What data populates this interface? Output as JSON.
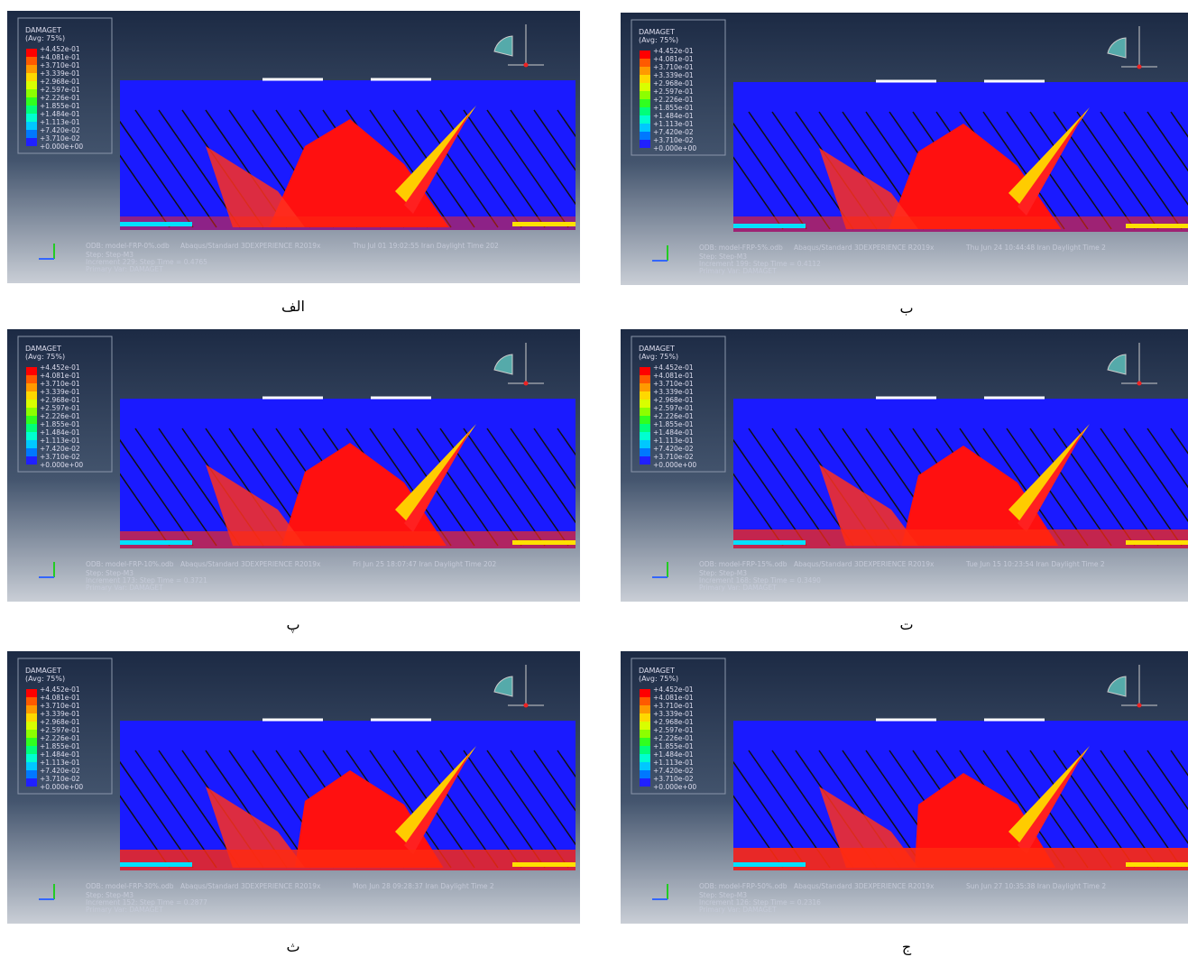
{
  "legend": {
    "title": "DAMAGET",
    "subtitle": "(Avg: 75%)",
    "values": [
      "+4.452e-01",
      "+4.081e-01",
      "+3.710e-01",
      "+3.339e-01",
      "+2.968e-01",
      "+2.597e-01",
      "+2.226e-01",
      "+1.855e-01",
      "+1.484e-01",
      "+1.113e-01",
      "+7.420e-02",
      "+3.710e-02",
      "+0.000e+00"
    ]
  },
  "software": "Abaqus/Standard 3DEXPERIENCE R2019x",
  "step": "Step: Step-M3",
  "primary_var": "Primary Var: DAMAGET",
  "panels": [
    {
      "label": "الف",
      "odb": "ODB: model-FRP-0%.odb",
      "date": "Thu Jul 01 19:02:55 Iran Daylight Time 202",
      "increment": "Increment    229: Step Time =    0.4765"
    },
    {
      "label": "ب",
      "odb": "ODB: model-FRP-5%.odb",
      "date": "Thu Jun 24 10:44:48 Iran Daylight Time 2",
      "increment": "Increment    199: Step Time =    0.4112"
    },
    {
      "label": "پ",
      "odb": "ODB: model-FRP-10%.odb",
      "date": "Fri Jun 25 18:07:47 Iran Daylight Time 202",
      "increment": "Increment    173: Step Time =    0.3721"
    },
    {
      "label": "ت",
      "odb": "ODB: model-FRP-15%.odb",
      "date": "Tue Jun 15 10:23:54 Iran Daylight Time 2",
      "increment": "Increment    168: Step Time =    0.3490"
    },
    {
      "label": "ث",
      "odb": "ODB: model-FRP-30%.odb",
      "date": "Mon Jun 28 09:28:37 Iran Daylight Time 2",
      "increment": "Increment    152: Step Time =    0.2877"
    },
    {
      "label": "ج",
      "odb": "ODB: model-FRP-50%.odb",
      "date": "Sun Jun 27 10:35:38 Iran Daylight Time 2",
      "increment": "Increment    126: Step Time =    0.2316"
    }
  ]
}
